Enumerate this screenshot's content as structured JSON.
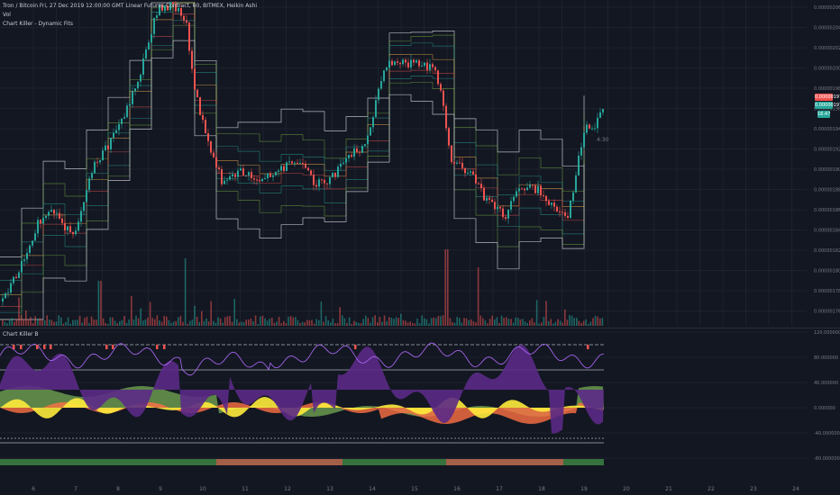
{
  "main_pane": {
    "symbol_line": "Tron / Bitcoin Fri, 27 Dec 2019 12:00:00 GMT Linear Futures Contract, 60, BITMEX, Heikin Ashi",
    "indicator_vol": "Vol",
    "indicator_fits": "Chart Killer - Dynamic Fits",
    "price_axis_labels": [
      "0.00000206",
      "0.00000204",
      "0.00000202",
      "0.00000200",
      "0.00000198",
      "0.00000196",
      "0.00000194",
      "0.00000192",
      "0.00000190",
      "0.00000188",
      "0.00000186",
      "0.00000184",
      "0.00000182",
      "0.00000180",
      "0.00000178",
      "0.00000176"
    ],
    "last_price_red": "0.00000197",
    "last_price_green": "0.00000197",
    "small_badge": "16:47",
    "annotation": "4:30"
  },
  "sub_pane": {
    "title": "Chart Killer B",
    "axis_labels": [
      "120.000000",
      "80.000000",
      "40.000000",
      "0.000000",
      "-40.000000",
      "-80.000000"
    ]
  },
  "time_axis": {
    "labels": [
      "6",
      "7",
      "8",
      "9",
      "10",
      "11",
      "12",
      "13",
      "14",
      "15",
      "16",
      "17",
      "18",
      "19",
      "20",
      "21",
      "22",
      "23",
      "24"
    ]
  },
  "colors": {
    "background": "#131722",
    "up_candle": "#26a69a",
    "down_candle": "#ef5350",
    "purple": "#5b2a86",
    "yellow": "#ffeb3b",
    "green_band": "#6a994e",
    "orange_band": "#ff7043",
    "purple_line": "#b36bff"
  }
}
